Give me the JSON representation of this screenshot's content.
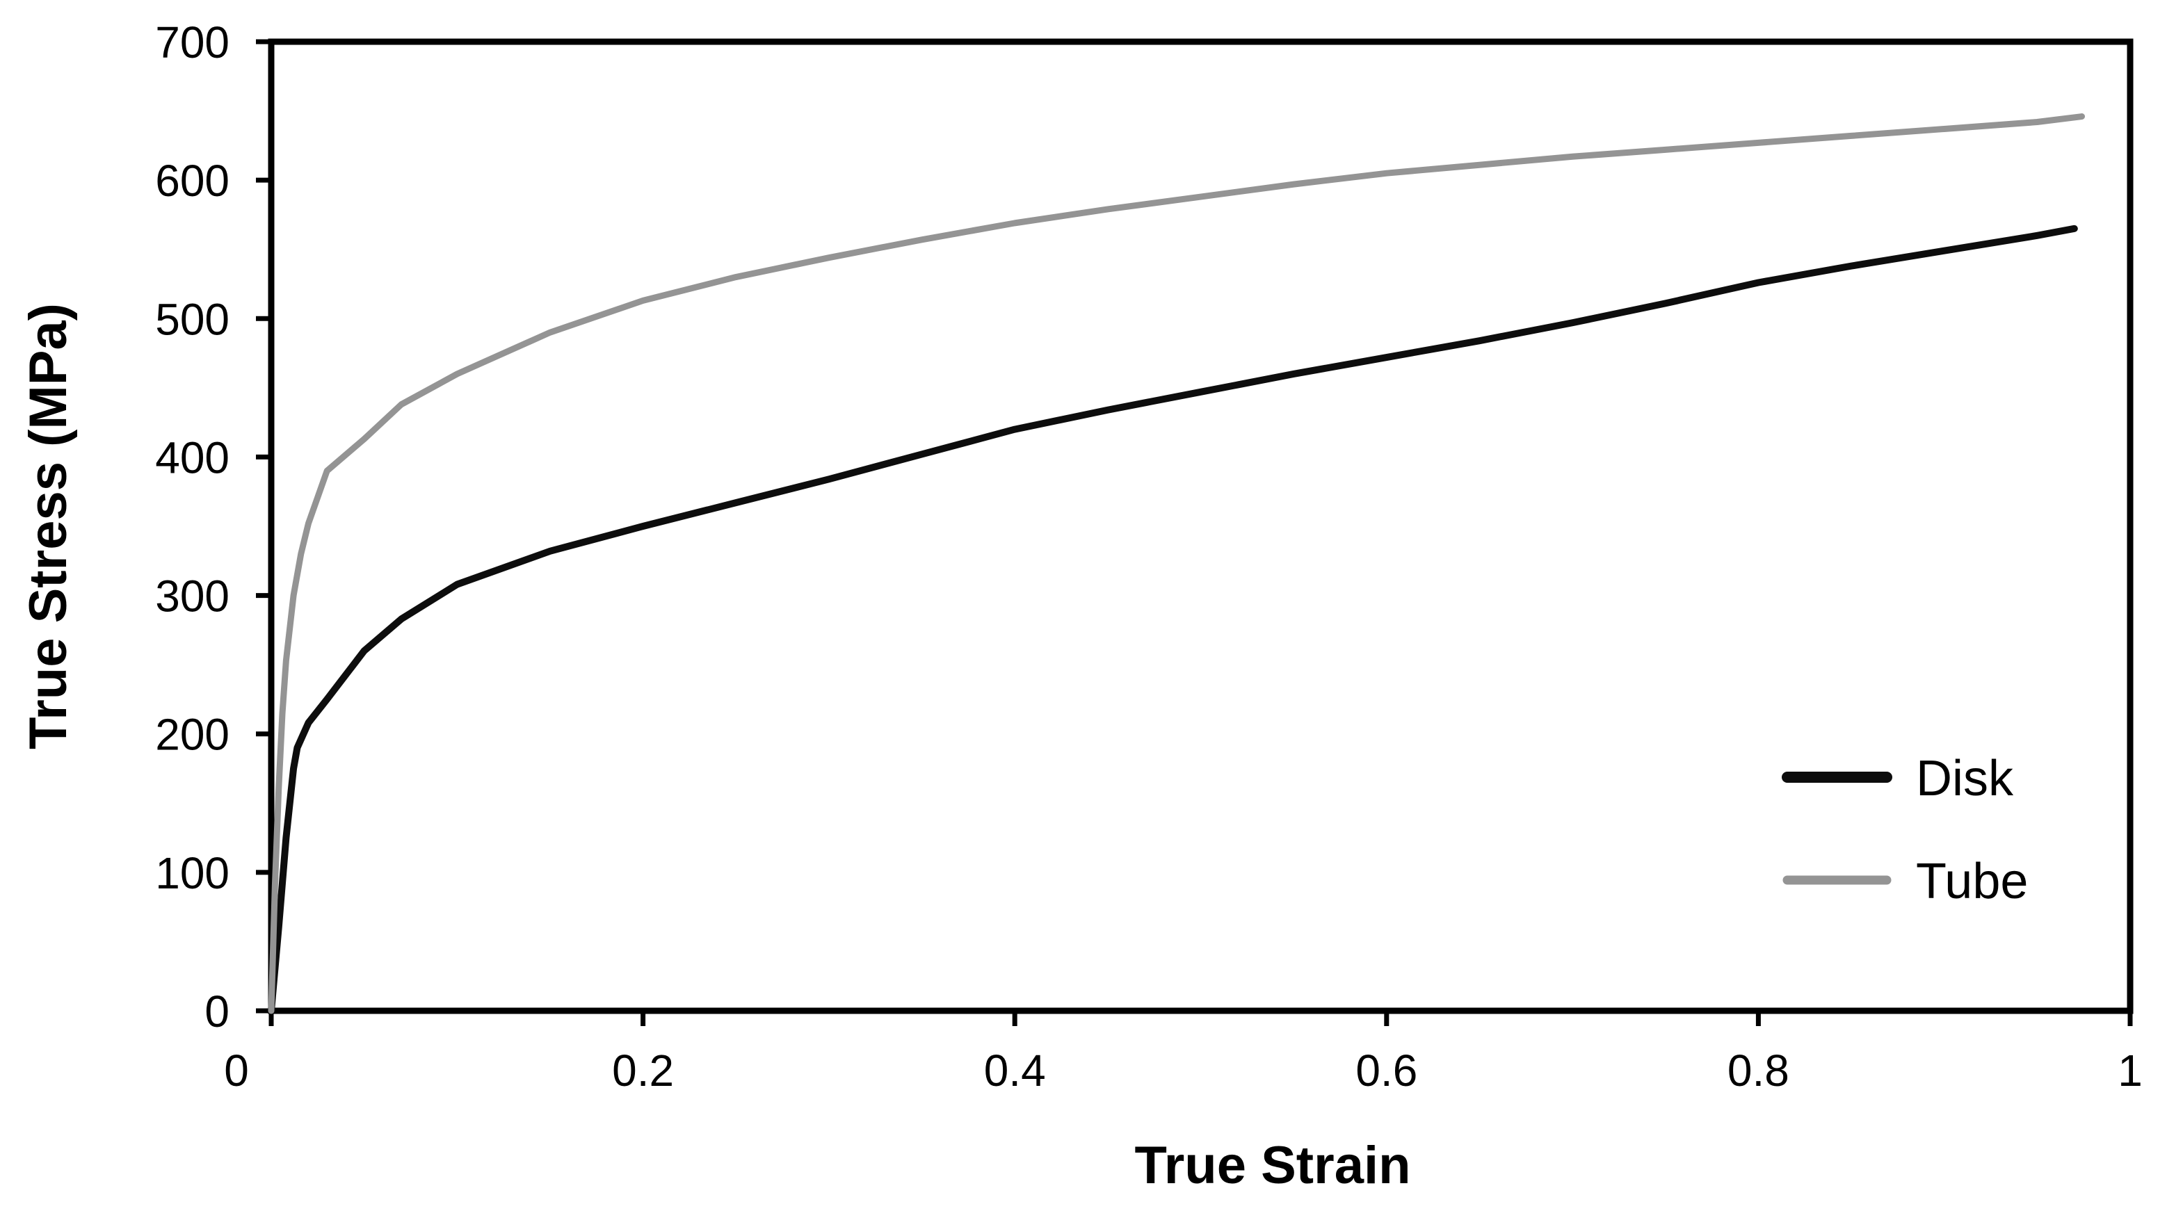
{
  "chart_data": {
    "type": "line",
    "title": "",
    "xlabel": "True Strain",
    "ylabel": "True Stress (MPa)",
    "xlim": [
      0,
      1
    ],
    "ylim": [
      0,
      700
    ],
    "x_tick_values": [
      0,
      0.2,
      0.4,
      0.6,
      0.8,
      1
    ],
    "x_tick_labels": [
      "0",
      "0.2",
      "0.4",
      "0.6",
      "0.8",
      "1"
    ],
    "y_tick_values": [
      0,
      100,
      200,
      300,
      400,
      500,
      600,
      700
    ],
    "y_tick_labels": [
      "0",
      "100",
      "200",
      "300",
      "400",
      "500",
      "600",
      "700"
    ],
    "grid": false,
    "plot_border": true,
    "background_color": "#ffffff",
    "axis_color": "#000000",
    "legend": {
      "position": "inside-right",
      "entries": [
        "Disk",
        "Tube"
      ]
    },
    "series": [
      {
        "name": "Disk",
        "color": "#0d0d0d",
        "line_width": 10,
        "x": [
          0,
          0.004,
          0.008,
          0.012,
          0.014,
          0.02,
          0.03,
          0.05,
          0.07,
          0.1,
          0.15,
          0.2,
          0.25,
          0.3,
          0.35,
          0.4,
          0.45,
          0.5,
          0.55,
          0.6,
          0.65,
          0.7,
          0.75,
          0.8,
          0.85,
          0.9,
          0.95,
          0.97
        ],
        "y": [
          0,
          60,
          125,
          175,
          190,
          208,
          225,
          260,
          283,
          308,
          332,
          350,
          367,
          384,
          402,
          420,
          434,
          447,
          460,
          472,
          484,
          497,
          511,
          526,
          538,
          549,
          560,
          565
        ]
      },
      {
        "name": "Tube",
        "color": "#949494",
        "line_width": 9,
        "x": [
          0,
          0.002,
          0.004,
          0.006,
          0.008,
          0.012,
          0.016,
          0.02,
          0.03,
          0.05,
          0.07,
          0.1,
          0.15,
          0.2,
          0.25,
          0.3,
          0.35,
          0.4,
          0.45,
          0.5,
          0.55,
          0.6,
          0.65,
          0.7,
          0.75,
          0.8,
          0.85,
          0.9,
          0.95,
          0.974
        ],
        "y": [
          0,
          90,
          160,
          215,
          253,
          300,
          330,
          352,
          390,
          413,
          438,
          460,
          490,
          513,
          530,
          544,
          557,
          569,
          579,
          588,
          597,
          605,
          611,
          617,
          622,
          627,
          632,
          637,
          642,
          646
        ]
      }
    ]
  }
}
